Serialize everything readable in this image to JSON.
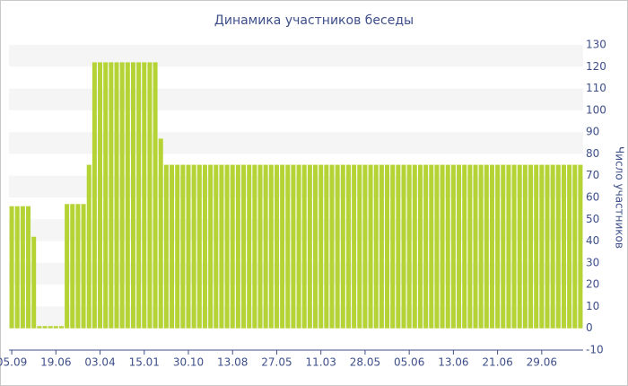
{
  "chart_data": {
    "type": "bar",
    "title": "Динамика участников беседы",
    "y_axis_label": "Число участников",
    "categories": [
      "05.09",
      null,
      null,
      null,
      null,
      null,
      null,
      null,
      "19.06",
      null,
      null,
      null,
      null,
      null,
      null,
      null,
      "03.04",
      null,
      null,
      null,
      null,
      null,
      null,
      null,
      "15.01",
      null,
      null,
      null,
      null,
      null,
      null,
      null,
      "30.10",
      null,
      null,
      null,
      null,
      null,
      null,
      null,
      "13.08",
      null,
      null,
      null,
      null,
      null,
      null,
      null,
      "27.05",
      null,
      null,
      null,
      null,
      null,
      null,
      null,
      "11.03",
      null,
      null,
      null,
      null,
      null,
      null,
      null,
      "28.05",
      null,
      null,
      null,
      null,
      null,
      null,
      null,
      "05.06",
      null,
      null,
      null,
      null,
      null,
      null,
      null,
      "13.06",
      null,
      null,
      null,
      null,
      null,
      null,
      null,
      "21.06",
      null,
      null,
      null,
      null,
      null,
      null,
      null,
      "29.06",
      null,
      null,
      null,
      null,
      null,
      null,
      null
    ],
    "values": [
      56,
      56,
      56,
      56,
      42,
      1,
      1,
      1,
      1,
      1,
      57,
      57,
      57,
      57,
      75,
      122,
      122,
      122,
      122,
      122,
      122,
      122,
      122,
      122,
      122,
      122,
      122,
      87,
      75,
      75,
      75,
      75,
      75,
      75,
      75,
      75,
      75,
      75,
      75,
      75,
      75,
      75,
      75,
      75,
      75,
      75,
      75,
      75,
      75,
      75,
      75,
      75,
      75,
      75,
      75,
      75,
      75,
      75,
      75,
      75,
      75,
      75,
      75,
      75,
      75,
      75,
      75,
      75,
      75,
      75,
      75,
      75,
      75,
      75,
      75,
      75,
      75,
      75,
      75,
      75,
      75,
      75,
      75,
      75,
      75,
      75,
      75,
      75,
      75,
      75,
      75,
      75,
      75,
      75,
      75,
      75,
      75,
      75,
      75,
      75,
      75,
      75,
      75,
      75
    ],
    "color": "#b5d334",
    "ylim": [
      -10,
      130
    ],
    "yticks": [
      -10,
      0,
      10,
      20,
      30,
      40,
      50,
      60,
      70,
      80,
      90,
      100,
      110,
      120,
      130
    ],
    "grid": true
  }
}
